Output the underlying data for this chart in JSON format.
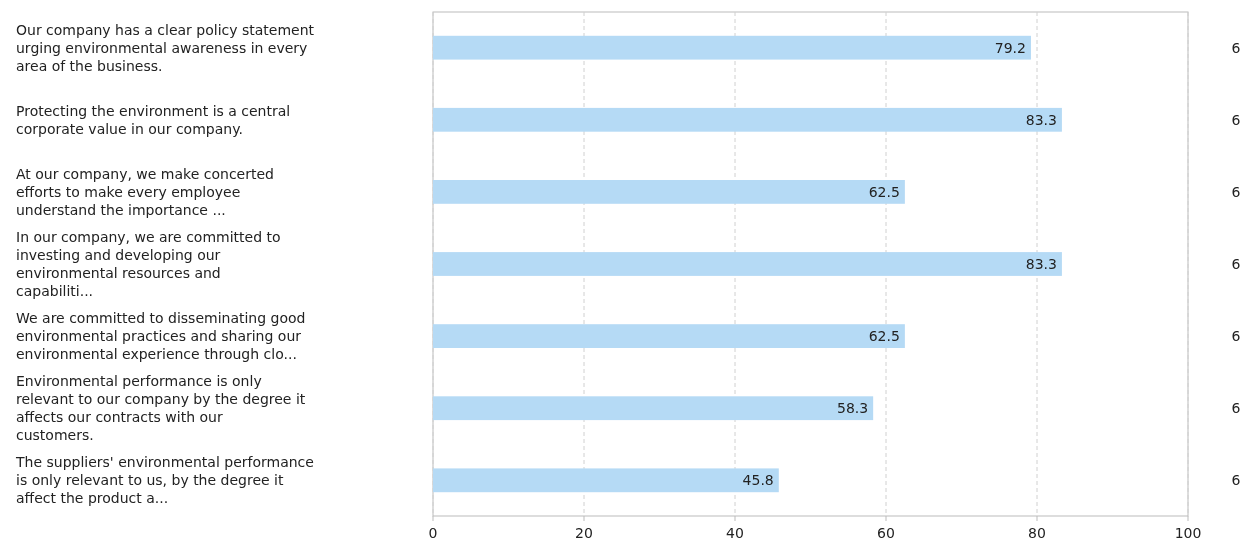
{
  "chart_data": {
    "type": "bar",
    "orientation": "horizontal",
    "categories": [
      "Our company has a clear policy statement urging environmental awareness in every area of the business.",
      "Protecting the environment is a central corporate value in our company.",
      "At our company, we make concerted efforts to make every employee understand the importance ...",
      "In our company, we are committed to investing and developing our environmental resources and capabiliti...",
      "We are committed to disseminating good environmental practices and sharing our environmental experience through clo...",
      "Environmental performance is only relevant to our company by the degree it affects our contracts with our customers.",
      "The suppliers' environmental performance is only relevant to us, by the degree it affect the product a..."
    ],
    "values": [
      79.2,
      83.3,
      62.5,
      83.3,
      62.5,
      58.3,
      45.8
    ],
    "color": "#b5daf5",
    "data_labels": true,
    "xlim": [
      0,
      100
    ],
    "xticks": [
      0,
      20,
      40,
      60,
      80,
      100
    ],
    "grid": "x",
    "annotations": [
      "6",
      "6",
      "6",
      "6",
      "6",
      "6",
      "6"
    ]
  }
}
